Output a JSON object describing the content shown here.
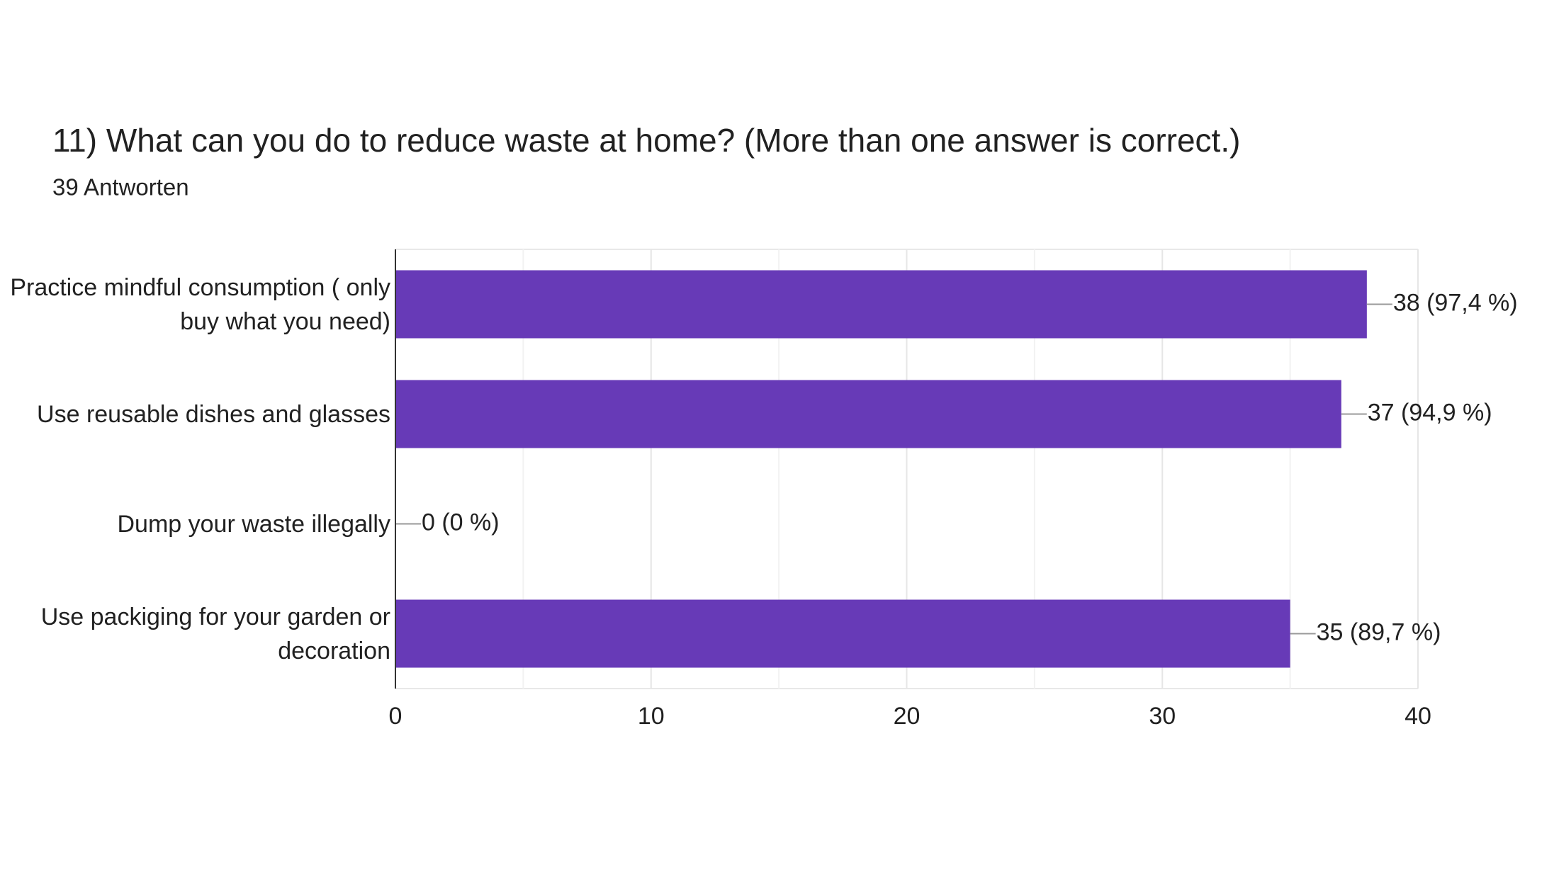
{
  "chart_data": {
    "type": "bar",
    "orientation": "horizontal",
    "title": "11) What can you do to reduce waste at home?  (More than one answer is correct.)",
    "subtitle": "39 Antworten",
    "categories": [
      "Practice mindful consumption ( only buy what you need)",
      "Use reusable dishes and glasses",
      "Dump your waste illegally",
      "Use packiging for your garden or decoration"
    ],
    "values": [
      38,
      37,
      0,
      35
    ],
    "value_labels": [
      "38 (97,4 %)",
      "37 (94,9 %)",
      "0 (0 %)",
      "35 (89,7 %)"
    ],
    "color": "#673ab7",
    "xlim": [
      0,
      40
    ],
    "xticks": [
      0,
      10,
      20,
      30,
      40
    ],
    "minor_xticks": [
      5,
      15,
      25,
      35
    ],
    "grid": true
  }
}
